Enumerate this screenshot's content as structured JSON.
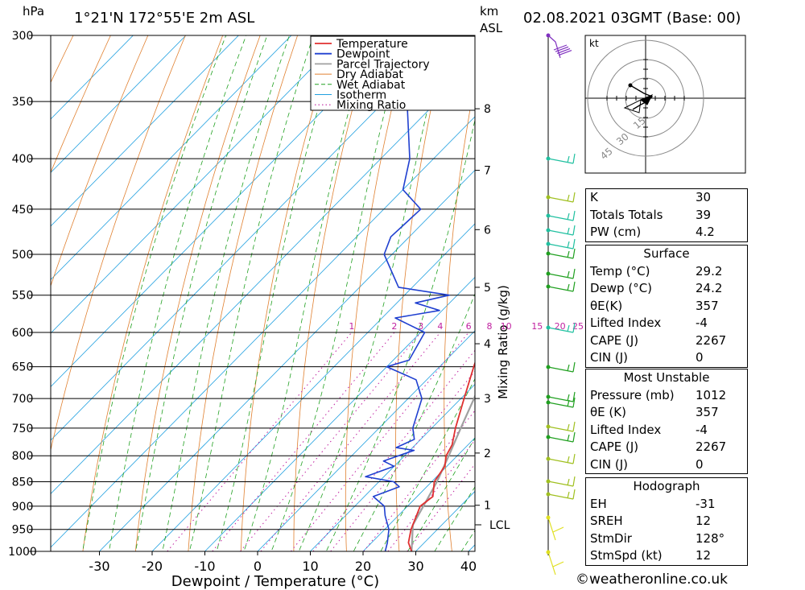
{
  "header": {
    "location": "1°21'N  172°55'E  2m  ASL",
    "datetime": "02.08.2021  03GMT  (Base: 00)",
    "pressure_unit": "hPa",
    "height_unit": "km",
    "height_unit2": "ASL"
  },
  "chart_data": {
    "type": "skew-t",
    "xlabel": "Dewpoint / Temperature (°C)",
    "ylabel_right": "Mixing Ratio (g/kg)",
    "x_ticks": [
      -30,
      -20,
      -10,
      0,
      10,
      20,
      30,
      40
    ],
    "pressure_levels": [
      300,
      350,
      400,
      450,
      500,
      550,
      600,
      650,
      700,
      750,
      800,
      850,
      900,
      950,
      1000
    ],
    "height_ticks_km": [
      1,
      2,
      3,
      4,
      5,
      6,
      7,
      8
    ],
    "lcl_label": "LCL",
    "mixing_ratio_labels": [
      "1",
      "2",
      "3",
      "4",
      "6",
      "8",
      "10",
      "15",
      "20",
      "25"
    ],
    "legend": [
      "Temperature",
      "Dewpoint",
      "Parcel Trajectory",
      "Dry Adiabat",
      "Wet Adiabat",
      "Isotherm",
      "Mixing Ratio"
    ],
    "colors": {
      "temperature": "#e03030",
      "dewpoint": "#2040d0",
      "parcel": "#a0a0a0",
      "dry_adiabat": "#e08030",
      "wet_adiabat": "#20a020",
      "isotherm": "#20a0e0",
      "mixing_ratio": "#c020a0"
    },
    "temperature": [
      [
        1000,
        29.2
      ],
      [
        980,
        27.0
      ],
      [
        950,
        25.0
      ],
      [
        900,
        22.4
      ],
      [
        880,
        23.0
      ],
      [
        850,
        20.5
      ],
      [
        820,
        19.6
      ],
      [
        800,
        17.9
      ],
      [
        780,
        17.0
      ],
      [
        750,
        14.5
      ],
      [
        700,
        10.6
      ],
      [
        650,
        6.5
      ],
      [
        600,
        2.3
      ],
      [
        550,
        -3.4
      ],
      [
        540,
        -4.1
      ],
      [
        500,
        -7.4
      ],
      [
        450,
        -13.5
      ],
      [
        430,
        -15.5
      ],
      [
        400,
        -18.0
      ],
      [
        370,
        -23.0
      ],
      [
        350,
        -26.5
      ],
      [
        300,
        -36.2
      ]
    ],
    "dewpoint": [
      [
        1000,
        24.2
      ],
      [
        980,
        23.0
      ],
      [
        950,
        20.8
      ],
      [
        920,
        17.5
      ],
      [
        900,
        15.6
      ],
      [
        880,
        11.7
      ],
      [
        860,
        14.8
      ],
      [
        850,
        12.8
      ],
      [
        840,
        6.5
      ],
      [
        820,
        10.0
      ],
      [
        810,
        7.0
      ],
      [
        790,
        10.8
      ],
      [
        785,
        6.9
      ],
      [
        770,
        8.8
      ],
      [
        750,
        6.4
      ],
      [
        700,
        2.6
      ],
      [
        670,
        -2.0
      ],
      [
        650,
        -10.0
      ],
      [
        640,
        -7.0
      ],
      [
        600,
        -9.2
      ],
      [
        580,
        -17.5
      ],
      [
        570,
        -10.5
      ],
      [
        560,
        -16.5
      ],
      [
        550,
        -11.5
      ],
      [
        540,
        -22.6
      ],
      [
        500,
        -31.5
      ],
      [
        480,
        -33.5
      ],
      [
        450,
        -33.0
      ],
      [
        430,
        -40.0
      ],
      [
        400,
        -44.5
      ],
      [
        350,
        -55.7
      ],
      [
        300,
        -58.0
      ]
    ],
    "parcel": [
      [
        1000,
        29.2
      ],
      [
        940,
        24.5
      ],
      [
        900,
        23.0
      ],
      [
        850,
        21.0
      ],
      [
        800,
        18.4
      ],
      [
        750,
        15.5
      ],
      [
        700,
        12.5
      ],
      [
        650,
        9.0
      ],
      [
        600,
        5.2
      ],
      [
        550,
        0.8
      ],
      [
        500,
        -4.4
      ],
      [
        450,
        -10.3
      ],
      [
        400,
        -17.1
      ],
      [
        370,
        -22.0
      ]
    ]
  },
  "hodograph": {
    "unit": "kt",
    "ring_labels": [
      "15",
      "30",
      "45"
    ]
  },
  "indices": [
    {
      "label": "K",
      "value": "30"
    },
    {
      "label": "Totals Totals",
      "value": "39"
    },
    {
      "label": "PW (cm)",
      "value": "4.2"
    }
  ],
  "surface": {
    "title": "Surface",
    "rows": [
      {
        "label": "Temp (°C)",
        "value": "29.2"
      },
      {
        "label": "Dewp (°C)",
        "value": "24.2"
      },
      {
        "label": "θE(K)",
        "value": "357"
      },
      {
        "label": "Lifted Index",
        "value": "-4"
      },
      {
        "label": "CAPE (J)",
        "value": "2267"
      },
      {
        "label": "CIN (J)",
        "value": "0"
      }
    ]
  },
  "most_unstable": {
    "title": "Most Unstable",
    "rows": [
      {
        "label": "Pressure (mb)",
        "value": "1012"
      },
      {
        "label": "θE (K)",
        "value": "357"
      },
      {
        "label": "Lifted Index",
        "value": "-4"
      },
      {
        "label": "CAPE (J)",
        "value": "2267"
      },
      {
        "label": "CIN (J)",
        "value": "0"
      }
    ]
  },
  "hodograph_table": {
    "title": "Hodograph",
    "rows": [
      {
        "label": "EH",
        "value": "-31"
      },
      {
        "label": "SREH",
        "value": "12"
      },
      {
        "label": "StmDir",
        "value": "128°"
      },
      {
        "label": "StmSpd (kt)",
        "value": "12"
      }
    ]
  },
  "footer": {
    "copyright": "©weatheronline.co.uk"
  }
}
